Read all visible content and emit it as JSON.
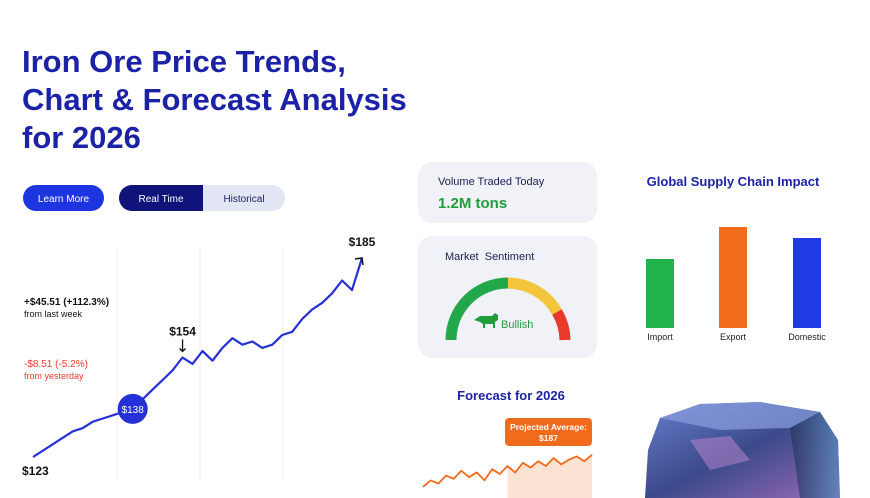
{
  "header": {
    "title_lines": [
      "Iron Ore Price Trends,",
      "Chart & Forecast Analysis",
      "for 2026"
    ]
  },
  "buttons": {
    "learn_more": "Learn More",
    "toggle": [
      "Real Time",
      "Historical"
    ]
  },
  "stats": {
    "weekly": {
      "change": "+$45.51 (+112.3%)",
      "period": "from last week"
    },
    "daily": {
      "change": "-$8.51 (-5.2%)",
      "period": "from yesterday"
    }
  },
  "price_chart": {
    "type": "line",
    "color": "#2430d8",
    "values": [
      123,
      125,
      127,
      129,
      131,
      132,
      134,
      135,
      136,
      137,
      138,
      141,
      144,
      147,
      150,
      154,
      152,
      156,
      153,
      157,
      160,
      158,
      159,
      157,
      158,
      161,
      162,
      166,
      169,
      171,
      174,
      178,
      175,
      185
    ],
    "value_labels": [
      "$123",
      null,
      null,
      null,
      null,
      null,
      null,
      null,
      null,
      null,
      "$138",
      null,
      null,
      null,
      null,
      "$154",
      null,
      null,
      null,
      null,
      null,
      null,
      null,
      null,
      null,
      null,
      null,
      null,
      null,
      null,
      null,
      null,
      null,
      "$185"
    ]
  },
  "volume_card": {
    "label": "Volume Traded Today",
    "value": "1.2M tons"
  },
  "sentiment_card": {
    "label": "Market  Sentiment",
    "state": "Bullish"
  },
  "supply_chart": {
    "type": "bar",
    "title": "Global Supply Chain Impact",
    "categories": [
      "Import",
      "Export",
      "Domestic"
    ],
    "values": [
      69,
      101,
      90
    ],
    "colors": [
      "#22b24c",
      "#f26a1b",
      "#1f3be6"
    ]
  },
  "forecast_chart": {
    "type": "line",
    "title": "Forecast for 2026",
    "color": "#f26a1b",
    "values": [
      172,
      176,
      174,
      179,
      177,
      182,
      178,
      181,
      176,
      183,
      180,
      185,
      181,
      187,
      184,
      188,
      185,
      190,
      186,
      189,
      191,
      188,
      192
    ],
    "annotation": {
      "text": "Projected Average:",
      "value": 187,
      "value_label": "$187"
    }
  }
}
